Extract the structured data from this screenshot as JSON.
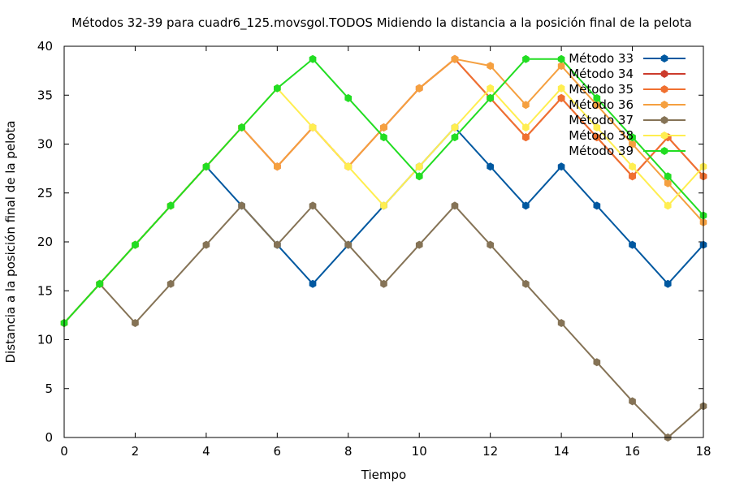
{
  "chart_data": {
    "type": "line",
    "title": "Métodos 32-39 para cuadr6_125.movsgol.TODOS Midiendo la distancia a la posición final de la pelota",
    "xlabel": "Tiempo",
    "ylabel": "Distancia a la posición final de la pelota",
    "xlim": [
      0,
      18
    ],
    "ylim": [
      0,
      40
    ],
    "xticks": [
      0,
      2,
      4,
      6,
      8,
      10,
      12,
      14,
      16,
      18
    ],
    "yticks": [
      0,
      5,
      10,
      15,
      20,
      25,
      30,
      35,
      40
    ],
    "grid": false,
    "legend_position": "top-right",
    "x": [
      0,
      1,
      2,
      3,
      4,
      5,
      6,
      7,
      8,
      9,
      10,
      11,
      12,
      13,
      14,
      15,
      16,
      17,
      18
    ],
    "series": [
      {
        "name": "Método 33",
        "color": "#0058a0",
        "values": [
          11.7,
          15.7,
          19.7,
          23.7,
          27.7,
          23.7,
          19.7,
          15.7,
          19.7,
          23.7,
          27.7,
          31.7,
          27.7,
          23.7,
          27.7,
          23.7,
          19.7,
          15.7,
          19.7
        ]
      },
      {
        "name": "Método 34",
        "color": "#cc3b2c",
        "values": [
          11.7,
          15.7,
          19.7,
          23.7,
          27.7,
          31.7,
          27.7,
          31.7,
          27.7,
          31.7,
          35.7,
          38.7,
          34.7,
          30.7,
          34.7,
          30.7,
          26.7,
          30.7,
          26.7
        ]
      },
      {
        "name": "Método 35",
        "color": "#f07030",
        "values": [
          11.7,
          15.7,
          19.7,
          23.7,
          27.7,
          31.7,
          27.7,
          31.7,
          27.7,
          31.7,
          35.7,
          38.7,
          34.7,
          30.7,
          34.7,
          30.7,
          26.7,
          30.7,
          26.7
        ]
      },
      {
        "name": "Método 36",
        "color": "#f5a040",
        "values": [
          11.7,
          15.7,
          19.7,
          23.7,
          27.7,
          31.7,
          27.7,
          31.7,
          27.7,
          31.7,
          35.7,
          38.7,
          38.0,
          34.0,
          38.0,
          34.0,
          30.0,
          26.0,
          22.0
        ]
      },
      {
        "name": "Método 37",
        "color": "#857356",
        "values": [
          11.7,
          15.7,
          11.7,
          15.7,
          19.7,
          23.7,
          19.7,
          23.7,
          19.7,
          15.7,
          19.7,
          23.7,
          19.7,
          15.7,
          11.7,
          7.7,
          3.7,
          0.0,
          3.2
        ]
      },
      {
        "name": "Método 38",
        "color": "#ffee50",
        "values": [
          11.7,
          15.7,
          19.7,
          23.7,
          27.7,
          31.7,
          35.7,
          31.7,
          27.7,
          23.7,
          27.7,
          31.7,
          35.7,
          31.7,
          35.7,
          31.7,
          27.7,
          23.7,
          27.7
        ]
      },
      {
        "name": "Método 39",
        "color": "#22dd22",
        "values": [
          11.7,
          15.7,
          19.7,
          23.7,
          27.7,
          31.7,
          35.7,
          38.7,
          34.7,
          30.7,
          26.7,
          30.7,
          34.7,
          38.7,
          38.7,
          34.7,
          30.7,
          26.7,
          22.7
        ]
      }
    ]
  }
}
